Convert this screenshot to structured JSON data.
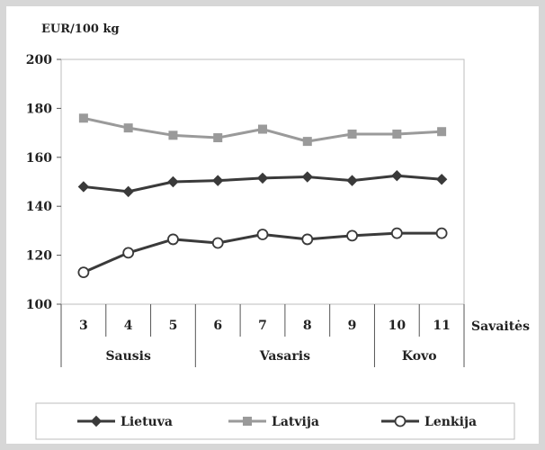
{
  "chart_data": {
    "type": "line",
    "ylabel": "EUR/100 kg",
    "xlabel": "Savaitės",
    "ylim": [
      100,
      200
    ],
    "yticks": [
      100,
      120,
      140,
      160,
      180,
      200
    ],
    "x": [
      "3",
      "4",
      "5",
      "6",
      "7",
      "8",
      "9",
      "10",
      "11"
    ],
    "groups": [
      {
        "label": "Sausis",
        "weeks": [
          "3",
          "4",
          "5"
        ]
      },
      {
        "label": "Vasaris",
        "weeks": [
          "6",
          "7",
          "8",
          "9"
        ]
      },
      {
        "label": "Kovo",
        "weeks": [
          "10",
          "11"
        ]
      }
    ],
    "grid": false,
    "legend_position": "bottom",
    "series": [
      {
        "name": "Lietuva",
        "marker": "diamond",
        "color": "#3a3a3a",
        "values": [
          148,
          146,
          150,
          150.5,
          151.5,
          152,
          150.5,
          152.5,
          151
        ]
      },
      {
        "name": "Latvija",
        "marker": "square",
        "color": "#9a9a9a",
        "values": [
          176,
          172,
          169,
          168,
          171.5,
          166.5,
          169.5,
          169.5,
          170.5
        ]
      },
      {
        "name": "Lenkija",
        "marker": "circle",
        "color": "#3a3a3a",
        "values": [
          113,
          121,
          126.5,
          125,
          128.5,
          126.5,
          128,
          129,
          129
        ]
      }
    ]
  }
}
